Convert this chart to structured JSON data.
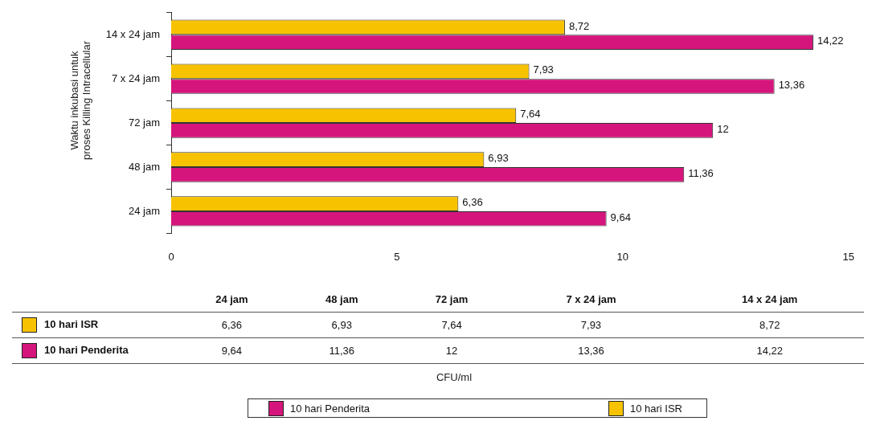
{
  "chart_data": {
    "type": "bar",
    "orientation": "horizontal",
    "ylabel": "Waktu inkubasi untuk proses Killing Intracellular",
    "annotations": [
      "CFU/ml"
    ],
    "categories": [
      "14 x 24 jam",
      "7 x 24 jam",
      "72 jam",
      "48 jam",
      "24 jam"
    ],
    "series": [
      {
        "name": "10 hari ISR",
        "color": "#f7c200",
        "values": [
          8.72,
          7.93,
          7.64,
          6.93,
          6.36
        ],
        "value_labels": [
          "8,72",
          "7,93",
          "7,64",
          "6,93",
          "6,36"
        ]
      },
      {
        "name": "10 hari Penderita",
        "color": "#d5157c",
        "values": [
          14.22,
          13.36,
          12,
          11.36,
          9.64
        ],
        "value_labels": [
          "14,22",
          "13,36",
          "12",
          "11,36",
          "9,64"
        ]
      }
    ],
    "xlim": [
      0,
      15
    ],
    "xticks": [
      0,
      5,
      10,
      15
    ],
    "grid": false,
    "legend": "bottom"
  }
}
